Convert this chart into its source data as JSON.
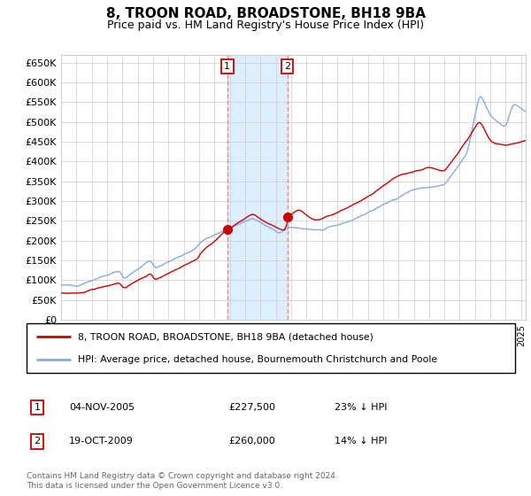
{
  "title": "8, TROON ROAD, BROADSTONE, BH18 9BA",
  "subtitle": "Price paid vs. HM Land Registry's House Price Index (HPI)",
  "legend_line1": "8, TROON ROAD, BROADSTONE, BH18 9BA (detached house)",
  "legend_line2": "HPI: Average price, detached house, Bournemouth Christchurch and Poole",
  "sale1_label": "1",
  "sale1_date": "04-NOV-2005",
  "sale1_price": "£227,500",
  "sale1_hpi": "23% ↓ HPI",
  "sale2_label": "2",
  "sale2_date": "19-OCT-2009",
  "sale2_price": "£260,000",
  "sale2_hpi": "14% ↓ HPI",
  "footnote": "Contains HM Land Registry data © Crown copyright and database right 2024.\nThis data is licensed under the Open Government Licence v3.0.",
  "red_color": "#cc0000",
  "blue_color": "#88aadd",
  "shade_color": "#ddeeff",
  "vline_color": "#ee8888",
  "ylim": [
    0,
    670000
  ],
  "yticks": [
    0,
    50000,
    100000,
    150000,
    200000,
    250000,
    300000,
    350000,
    400000,
    450000,
    500000,
    550000,
    600000,
    650000
  ],
  "sale1_year": 2005.84,
  "sale2_year": 2009.75,
  "sale1_price_val": 227500,
  "sale2_price_val": 260000,
  "xlim_left": 1995.0,
  "xlim_right": 2025.3
}
